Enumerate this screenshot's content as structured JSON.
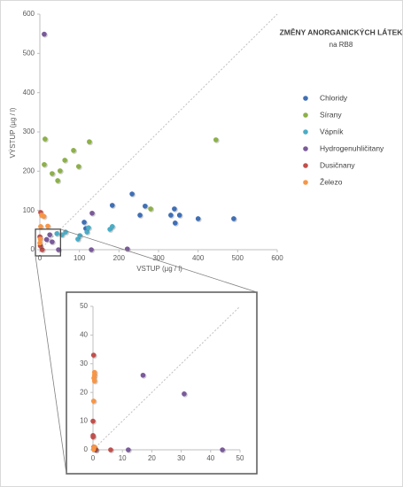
{
  "chart_data": [
    {
      "type": "scatter",
      "title": "ZMĚNY ANORGANICKÝCH LÁTEK",
      "subtitle": "na RB8",
      "x_label": "VSTUP (µg / l)",
      "y_label": "VÝSTUP (µg / l)",
      "xlim": [
        0,
        600
      ],
      "ylim": [
        0,
        600
      ],
      "xticks": [
        0,
        100,
        200,
        300,
        400,
        500,
        600
      ],
      "yticks": [
        0,
        100,
        200,
        300,
        400,
        500,
        600
      ],
      "legend": "right",
      "series": [
        {
          "name": "Chloridy",
          "color": "#3f6fb5",
          "x": [
            233,
            183,
            266,
            253,
            331,
            340,
            353,
            342,
            400,
            490,
            112,
            116
          ],
          "values": [
            142,
            113,
            111,
            88,
            88,
            104,
            88,
            68,
            79,
            79,
            70,
            54
          ]
        },
        {
          "name": "Sírany",
          "color": "#8db04a",
          "x": [
            13,
            11,
            31,
            45,
            51,
            63,
            85,
            98,
            125,
            280,
            445
          ],
          "values": [
            282,
            217,
            194,
            176,
            201,
            228,
            253,
            212,
            275,
            104,
            280
          ]
        },
        {
          "name": "Vápník",
          "color": "#4bacc6",
          "x": [
            43,
            65,
            56,
            96,
            101,
            119,
            123,
            177,
            183
          ],
          "values": [
            41,
            45,
            38,
            27,
            36,
            45,
            56,
            52,
            59
          ]
        },
        {
          "name": "Hydrogenuhličitany",
          "color": "#7a5a9a",
          "x": [
            11,
            25,
            132,
            221,
            130,
            47,
            17,
            31
          ],
          "values": [
            549,
            38,
            93,
            2,
            0,
            0,
            26,
            20
          ]
        },
        {
          "name": "Dusičnany",
          "color": "#c0504d",
          "x": [
            2,
            6,
            0,
            1
          ],
          "values": [
            95,
            0,
            33,
            10
          ]
        },
        {
          "name": "Železo",
          "color": "#f79646",
          "x": [
            4,
            2,
            10,
            20,
            1,
            0
          ],
          "values": [
            88,
            59,
            85,
            60,
            27,
            17
          ]
        }
      ]
    },
    {
      "type": "scatter",
      "xlim": [
        0,
        50
      ],
      "ylim": [
        0,
        50
      ],
      "xticks": [
        0,
        10,
        20,
        30,
        40,
        50
      ],
      "yticks": [
        0,
        10,
        20,
        30,
        40,
        50
      ],
      "series": [
        {
          "color": "#7a5a9a",
          "x": [
            17,
            31,
            44,
            12,
            1
          ],
          "values": [
            26,
            19.5,
            0,
            0,
            0
          ]
        },
        {
          "color": "#c0504d",
          "x": [
            0.2,
            0,
            0,
            0,
            0.3,
            0.5,
            6,
            1
          ],
          "values": [
            33,
            10,
            5,
            4.5,
            1,
            0.5,
            0,
            0
          ]
        },
        {
          "color": "#f79646",
          "x": [
            0.5,
            0.5,
            0.3,
            0.5,
            0.2,
            0.5,
            0.2
          ],
          "values": [
            27,
            26,
            25,
            24,
            17,
            1,
            0.2
          ]
        }
      ]
    }
  ]
}
